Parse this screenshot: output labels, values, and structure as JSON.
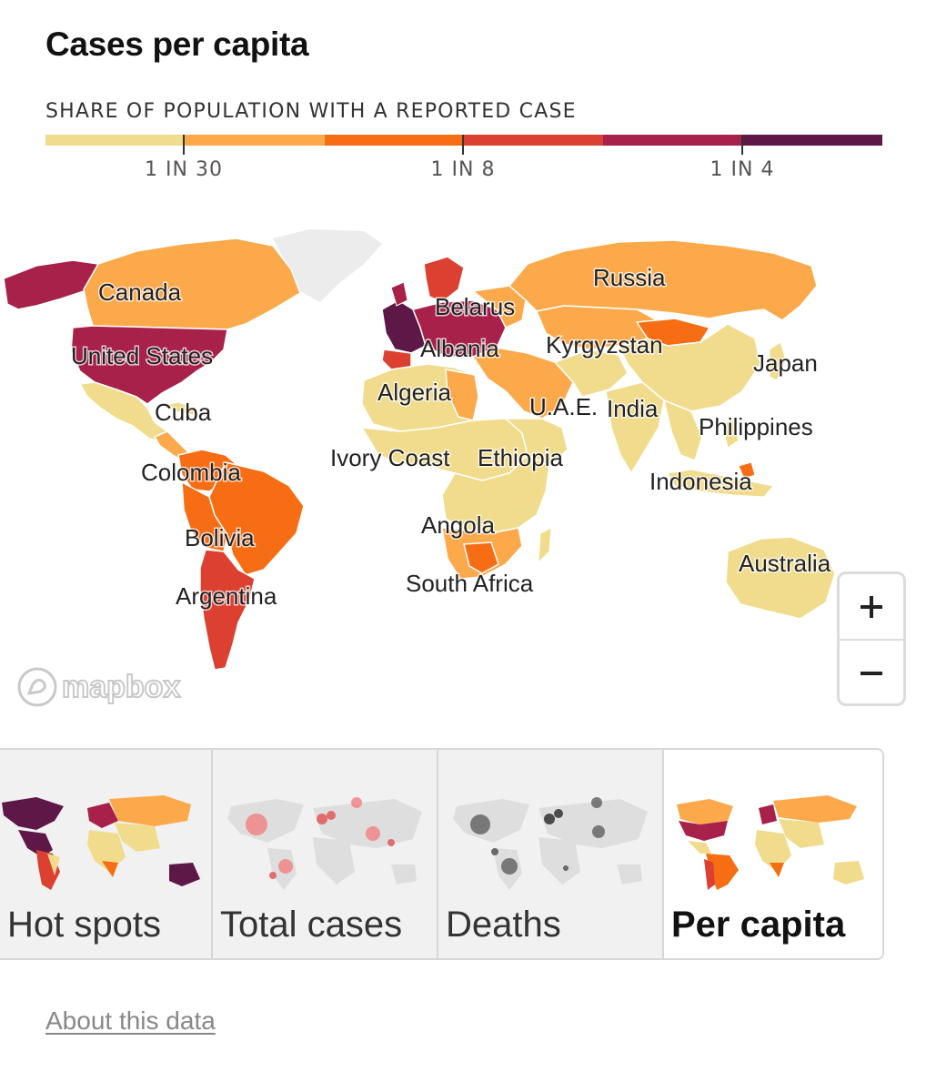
{
  "title": "Cases per capita",
  "legend": {
    "heading": "SHARE OF POPULATION WITH A REPORTED CASE",
    "colors": [
      "#f1dc8d",
      "#fba94a",
      "#f76d14",
      "#dc4030",
      "#a8214a",
      "#5e1848"
    ],
    "ticks": [
      "1 IN 30",
      "1 IN 8",
      "1 IN 4"
    ]
  },
  "map": {
    "labels": {
      "canada": "Canada",
      "united_states": "United States",
      "cuba": "Cuba",
      "colombia": "Colombia",
      "bolivia": "Bolivia",
      "argentina": "Argentina",
      "russia": "Russia",
      "belarus": "Belarus",
      "albania": "Albania",
      "kyrgyzstan": "Kyrgyzstan",
      "algeria": "Algeria",
      "uae": "U.A.E.",
      "india": "India",
      "japan": "Japan",
      "philippines": "Philippines",
      "ivory_coast": "Ivory Coast",
      "ethiopia": "Ethiopia",
      "indonesia": "Indonesia",
      "angola": "Angola",
      "south_africa": "South Africa",
      "australia": "Australia"
    },
    "attribution": "mapbox",
    "zoom_in": "+",
    "zoom_out": "−"
  },
  "tabs": [
    {
      "label": "Hot spots",
      "active": false
    },
    {
      "label": "Total cases",
      "active": false
    },
    {
      "label": "Deaths",
      "active": false
    },
    {
      "label": "Per capita",
      "active": true
    }
  ],
  "about_link": "About this data"
}
